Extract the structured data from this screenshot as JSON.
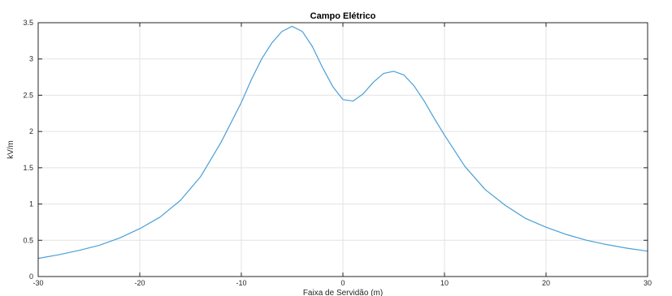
{
  "chart_data": {
    "type": "line",
    "title": "Campo Elétrico",
    "xlabel": "Faixa de Servidão (m)",
    "ylabel": "kV/m",
    "xlim": [
      -30,
      30
    ],
    "ylim": [
      0,
      3.5
    ],
    "grid": true,
    "x_ticks": [
      -30,
      -20,
      -10,
      0,
      10,
      20,
      30
    ],
    "x_tick_labels": [
      "-30",
      "-20",
      "-10",
      "0",
      "10",
      "20",
      "30"
    ],
    "y_ticks": [
      0,
      0.5,
      1,
      1.5,
      2,
      2.5,
      3,
      3.5
    ],
    "y_tick_labels": [
      "0",
      "0.5",
      "1",
      "1.5",
      "2",
      "2.5",
      "3",
      "3.5"
    ],
    "line_color": "#4a9fd6",
    "series": [
      {
        "x": [
          -30,
          -28,
          -26,
          -24,
          -22,
          -20,
          -18,
          -16,
          -14,
          -12,
          -10,
          -9,
          -8,
          -7,
          -6,
          -5,
          -4,
          -3,
          -2,
          -1,
          0,
          1,
          2,
          3,
          4,
          5,
          6,
          7,
          8,
          9,
          10,
          12,
          14,
          16,
          18,
          20,
          22,
          24,
          26,
          28,
          30
        ],
        "values": [
          0.25,
          0.3,
          0.36,
          0.43,
          0.53,
          0.66,
          0.82,
          1.05,
          1.38,
          1.85,
          2.4,
          2.72,
          3.0,
          3.22,
          3.38,
          3.45,
          3.38,
          3.17,
          2.88,
          2.62,
          2.44,
          2.42,
          2.52,
          2.68,
          2.8,
          2.83,
          2.78,
          2.63,
          2.42,
          2.18,
          1.95,
          1.52,
          1.2,
          0.98,
          0.8,
          0.68,
          0.58,
          0.5,
          0.44,
          0.39,
          0.35
        ]
      }
    ]
  }
}
